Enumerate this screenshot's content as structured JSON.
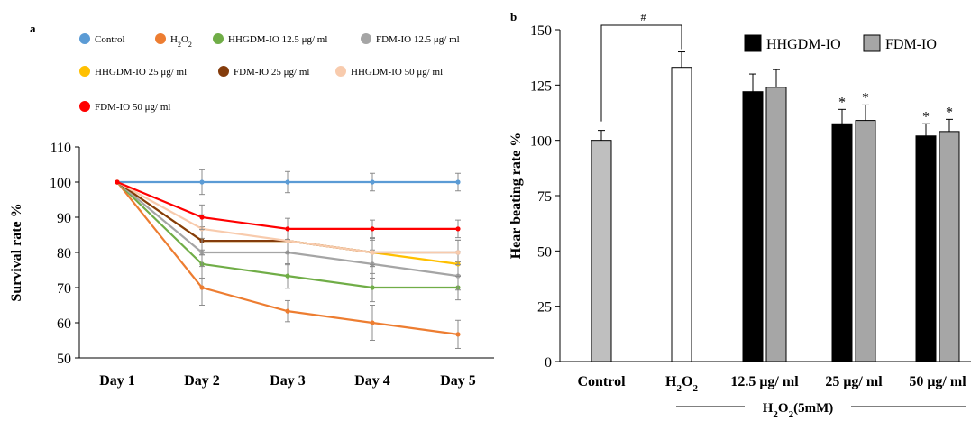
{
  "chart_data": [
    {
      "panel_label": "a",
      "type": "line",
      "xlabel": "",
      "ylabel": "Survival rate %",
      "categories": [
        "Day 1",
        "Day 2",
        "Day 3",
        "Day 4",
        "Day 5"
      ],
      "ylim": [
        50,
        110
      ],
      "yticks": [
        50,
        60,
        70,
        80,
        90,
        100,
        110
      ],
      "legend_placement": "top",
      "series": [
        {
          "name": "Control",
          "color": "#5b9bd5",
          "values": [
            100,
            100,
            100,
            100,
            100
          ],
          "errors": [
            0,
            3.5,
            3,
            2.5,
            2.5
          ]
        },
        {
          "name": "H2O2",
          "color": "#ed7d31",
          "values": [
            100,
            70,
            63.3,
            60,
            56.7
          ],
          "errors": [
            0,
            5,
            3,
            5,
            4
          ]
        },
        {
          "name": "HHGDM-IO 12.5 μg/ ml",
          "color": "#70ad47",
          "values": [
            100,
            76.7,
            73.3,
            70,
            70
          ],
          "errors": [
            0,
            4,
            3.5,
            4,
            3.5
          ]
        },
        {
          "name": "FDM-IO 12.5 μg/ ml",
          "color": "#a5a5a5",
          "values": [
            100,
            80,
            80,
            76.7,
            73.3
          ],
          "errors": [
            0,
            4,
            3.5,
            4,
            4
          ]
        },
        {
          "name": "HHGDM-IO 25 μg/ ml",
          "color": "#ffc000",
          "values": [
            100,
            83.3,
            83.3,
            80,
            76.7
          ],
          "errors": [
            0,
            4,
            3.5,
            4,
            3.5
          ]
        },
        {
          "name": "FDM-IO 25 μg/ ml",
          "color": "#843c0c",
          "values": [
            100,
            83.3,
            83.3,
            80,
            80
          ],
          "errors": [
            0,
            4,
            3.5,
            4,
            3.5
          ]
        },
        {
          "name": "HHGDM-IO 50 μg/ ml",
          "color": "#f8cbad",
          "values": [
            100,
            86.7,
            83.3,
            80,
            80
          ],
          "errors": [
            0,
            4,
            3.5,
            3.5,
            3.5
          ]
        },
        {
          "name": "FDM-IO 50 μg/ ml",
          "color": "#ff0000",
          "values": [
            100,
            90,
            86.7,
            86.7,
            86.7
          ],
          "errors": [
            0,
            3.5,
            3,
            2.5,
            2.5
          ]
        }
      ]
    },
    {
      "panel_label": "b",
      "type": "bar",
      "ylabel": "Hear beating rate %",
      "ylim": [
        0,
        150
      ],
      "yticks": [
        0,
        25,
        50,
        75,
        100,
        125,
        150
      ],
      "categories": [
        "Control",
        "H2O2",
        "12.5 μg/ ml",
        "25 μg/ ml",
        "50 μg/ ml"
      ],
      "group_label": "H2O2(5mM)",
      "legend_placement": "top-right",
      "single_bars": [
        {
          "category": "Control",
          "value": 100,
          "error": 4.5,
          "color": "#bfbfbf"
        },
        {
          "category": "H2O2",
          "value": 133,
          "error": 7,
          "color": "#ffffff"
        }
      ],
      "series": [
        {
          "name": "HHGDM-IO",
          "color": "#000000",
          "values": [
            null,
            null,
            122,
            107.5,
            102
          ],
          "errors": [
            null,
            null,
            8,
            6.5,
            5.5
          ]
        },
        {
          "name": "FDM-IO",
          "color": "#a6a6a6",
          "values": [
            null,
            null,
            124,
            109,
            104
          ],
          "errors": [
            null,
            null,
            8,
            7,
            5.5
          ]
        }
      ],
      "annotations": [
        {
          "text": "#",
          "between": [
            "Control",
            "H2O2"
          ]
        },
        {
          "text": "*",
          "category": "25 μg/ ml",
          "series": "HHGDM-IO"
        },
        {
          "text": "*",
          "category": "25 μg/ ml",
          "series": "FDM-IO"
        },
        {
          "text": "*",
          "category": "50 μg/ ml",
          "series": "HHGDM-IO"
        },
        {
          "text": "*",
          "category": "50 μg/ ml",
          "series": "FDM-IO"
        }
      ]
    }
  ]
}
